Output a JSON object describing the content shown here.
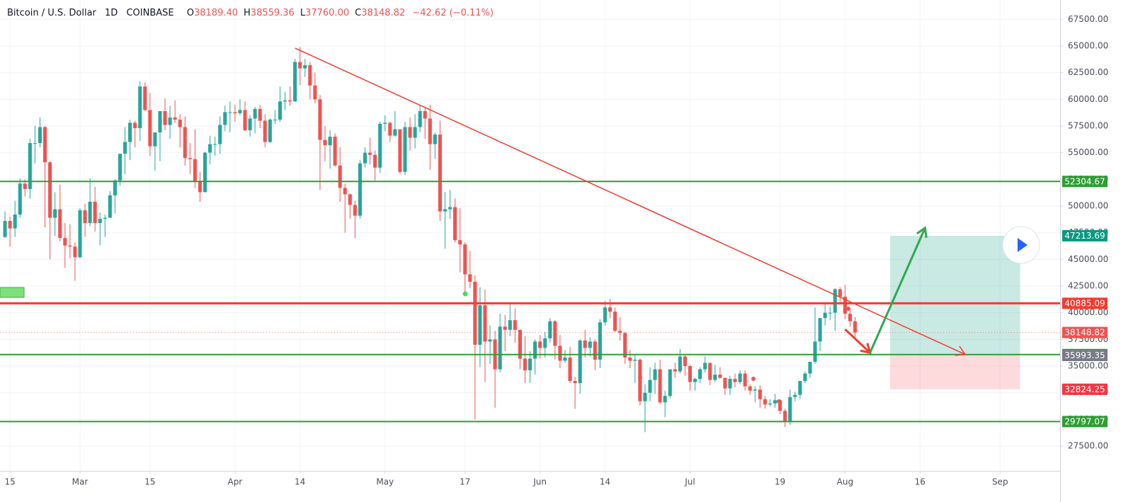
{
  "chart_data": {
    "type": "candlestick",
    "header": {
      "symbol": "Bitcoin / U.S. Dollar",
      "interval": "1D",
      "exchange": "COINBASE",
      "ohlc": [
        {
          "key": "O",
          "value": "38189.40"
        },
        {
          "key": "H",
          "value": "38559.36"
        },
        {
          "key": "L",
          "value": "37760.00"
        },
        {
          "key": "C",
          "value": "38148.82"
        }
      ],
      "change": "−42.62 (−0.11%)"
    },
    "x": [
      "2021-02-14",
      "2021-02-15",
      "2021-02-16",
      "2021-02-17",
      "2021-02-18",
      "2021-02-19",
      "2021-02-20",
      "2021-02-21",
      "2021-02-22",
      "2021-02-23",
      "2021-02-24",
      "2021-02-25",
      "2021-02-26",
      "2021-02-27",
      "2021-02-28",
      "2021-03-01",
      "2021-03-02",
      "2021-03-03",
      "2021-03-04",
      "2021-03-05",
      "2021-03-06",
      "2021-03-07",
      "2021-03-08",
      "2021-03-09",
      "2021-03-10",
      "2021-03-11",
      "2021-03-12",
      "2021-03-13",
      "2021-03-14",
      "2021-03-15",
      "2021-03-16",
      "2021-03-17",
      "2021-03-18",
      "2021-03-19",
      "2021-03-20",
      "2021-03-21",
      "2021-03-22",
      "2021-03-23",
      "2021-03-24",
      "2021-03-25",
      "2021-03-26",
      "2021-03-27",
      "2021-03-28",
      "2021-03-29",
      "2021-03-30",
      "2021-03-31",
      "2021-04-01",
      "2021-04-02",
      "2021-04-03",
      "2021-04-04",
      "2021-04-05",
      "2021-04-06",
      "2021-04-07",
      "2021-04-08",
      "2021-04-09",
      "2021-04-10",
      "2021-04-11",
      "2021-04-12",
      "2021-04-13",
      "2021-04-14",
      "2021-04-15",
      "2021-04-16",
      "2021-04-17",
      "2021-04-18",
      "2021-04-19",
      "2021-04-20",
      "2021-04-21",
      "2021-04-22",
      "2021-04-23",
      "2021-04-24",
      "2021-04-25",
      "2021-04-26",
      "2021-04-27",
      "2021-04-28",
      "2021-04-29",
      "2021-04-30",
      "2021-05-01",
      "2021-05-02",
      "2021-05-03",
      "2021-05-04",
      "2021-05-05",
      "2021-05-06",
      "2021-05-07",
      "2021-05-08",
      "2021-05-09",
      "2021-05-10",
      "2021-05-11",
      "2021-05-12",
      "2021-05-13",
      "2021-05-14",
      "2021-05-15",
      "2021-05-16",
      "2021-05-17",
      "2021-05-18",
      "2021-05-19",
      "2021-05-20",
      "2021-05-21",
      "2021-05-22",
      "2021-05-23",
      "2021-05-24",
      "2021-05-25",
      "2021-05-26",
      "2021-05-27",
      "2021-05-28",
      "2021-05-29",
      "2021-05-30",
      "2021-05-31",
      "2021-06-01",
      "2021-06-02",
      "2021-06-03",
      "2021-06-04",
      "2021-06-05",
      "2021-06-06",
      "2021-06-07",
      "2021-06-08",
      "2021-06-09",
      "2021-06-10",
      "2021-06-11",
      "2021-06-12",
      "2021-06-13",
      "2021-06-14",
      "2021-06-15",
      "2021-06-16",
      "2021-06-17",
      "2021-06-18",
      "2021-06-19",
      "2021-06-20",
      "2021-06-21",
      "2021-06-22",
      "2021-06-23",
      "2021-06-24",
      "2021-06-25",
      "2021-06-26",
      "2021-06-27",
      "2021-06-28",
      "2021-06-29",
      "2021-06-30",
      "2021-07-01",
      "2021-07-02",
      "2021-07-03",
      "2021-07-04",
      "2021-07-05",
      "2021-07-06",
      "2021-07-07",
      "2021-07-08",
      "2021-07-09",
      "2021-07-10",
      "2021-07-11",
      "2021-07-12",
      "2021-07-13",
      "2021-07-14",
      "2021-07-15",
      "2021-07-16",
      "2021-07-17",
      "2021-07-18",
      "2021-07-19",
      "2021-07-20",
      "2021-07-21",
      "2021-07-22",
      "2021-07-23",
      "2021-07-24",
      "2021-07-25",
      "2021-07-26",
      "2021-07-27",
      "2021-07-28",
      "2021-07-29",
      "2021-07-30",
      "2021-07-31",
      "2021-08-01",
      "2021-08-02",
      "2021-08-03"
    ],
    "open": [
      47100,
      48600,
      47900,
      49200,
      52100,
      51600,
      55900,
      55900,
      57400,
      54100,
      48900,
      49700,
      47000,
      46300,
      46200,
      45200,
      49600,
      48400,
      50400,
      48400,
      48800,
      48900,
      51000,
      52400,
      54900,
      56000,
      57800,
      57300,
      61200,
      59000,
      55600,
      56900,
      58900,
      57600,
      58300,
      58100,
      57400,
      54500,
      54400,
      52300,
      51300,
      55000,
      55800,
      55800,
      57600,
      58800,
      58800,
      58700,
      59000,
      57100,
      58200,
      59100,
      58000,
      56000,
      58100,
      58100,
      59800,
      59900,
      59800,
      63500,
      62900,
      63200,
      61300,
      60000,
      56200,
      55700,
      56500,
      53800,
      51700,
      51100,
      50100,
      49100,
      54000,
      55000,
      54800,
      53600,
      57700,
      57800,
      56600,
      57200,
      53200,
      57400,
      56400,
      57400,
      58900,
      58200,
      55800,
      56700,
      49500,
      49700,
      49900,
      46800,
      46400,
      43600,
      42900,
      37000,
      40700,
      37300,
      37500,
      34700,
      38700,
      38400,
      39300,
      38400,
      35700,
      34600,
      35700,
      37300,
      36700,
      37600,
      39200,
      36900,
      35500,
      35800,
      33600,
      33400,
      37400,
      36700,
      37300,
      35600,
      39100,
      40500,
      40100,
      38300,
      38100,
      35800,
      35500,
      35600,
      31700,
      32500,
      33700,
      34700,
      31600,
      32200,
      34700,
      34500,
      35900,
      35000,
      33500,
      33800,
      34700,
      35300,
      33700,
      34200,
      33900,
      32900,
      33800,
      33500,
      34300,
      33100,
      32700,
      32800,
      31900,
      31400,
      31500,
      31800,
      30800,
      29800,
      32100,
      32300,
      33600,
      34300,
      35400,
      37300,
      39500,
      40000,
      40000,
      42200,
      41500,
      39900,
      39200
    ],
    "high": [
      49500,
      49000,
      50500,
      52600,
      52500,
      56300,
      57500,
      58300,
      57500,
      54200,
      51300,
      52000,
      48400,
      48300,
      46600,
      49800,
      50200,
      52600,
      51800,
      49400,
      49200,
      51400,
      52500,
      54900,
      57400,
      58100,
      58000,
      61700,
      61600,
      60600,
      56900,
      58900,
      60100,
      59400,
      59900,
      58600,
      58400,
      55900,
      57200,
      53200,
      55100,
      56600,
      56500,
      58400,
      59400,
      59800,
      59500,
      60000,
      59800,
      58500,
      59300,
      59500,
      58600,
      58200,
      59000,
      61200,
      60700,
      61200,
      63800,
      64900,
      63800,
      63500,
      62500,
      60400,
      57500,
      57100,
      56800,
      55500,
      52100,
      51200,
      50500,
      54300,
      55500,
      56400,
      55200,
      57900,
      58500,
      57900,
      58900,
      57200,
      57900,
      58300,
      58600,
      59500,
      59200,
      59500,
      56900,
      58000,
      51300,
      51500,
      50700,
      49800,
      46600,
      45800,
      43500,
      42400,
      42200,
      38800,
      38300,
      39900,
      39800,
      40800,
      40400,
      38400,
      37800,
      36400,
      37500,
      37900,
      38200,
      39500,
      39300,
      37900,
      36500,
      36800,
      34000,
      37500,
      38400,
      37700,
      37500,
      39400,
      41100,
      41300,
      40500,
      39600,
      38200,
      36500,
      36100,
      35700,
      33300,
      34900,
      35300,
      35600,
      32700,
      34700,
      35300,
      36600,
      36000,
      35100,
      33900,
      34900,
      35900,
      35300,
      35100,
      34900,
      33900,
      34100,
      34300,
      34600,
      34600,
      33300,
      33100,
      33200,
      32200,
      31900,
      32400,
      31900,
      31000,
      32800,
      32600,
      33600,
      34500,
      35400,
      40500,
      39500,
      40900,
      40600,
      42300,
      42400,
      42600,
      40400,
      39600
    ],
    "low": [
      47000,
      46200,
      47100,
      48900,
      50900,
      50700,
      54000,
      55500,
      48000,
      45000,
      47200,
      46700,
      44200,
      45100,
      43000,
      45100,
      47100,
      48100,
      47600,
      46300,
      47100,
      48900,
      49300,
      51900,
      53000,
      54300,
      55500,
      56100,
      58900,
      54700,
      53300,
      54200,
      57100,
      56300,
      57800,
      55500,
      53800,
      53000,
      51700,
      50400,
      51300,
      53900,
      54700,
      54900,
      57000,
      56900,
      57900,
      58500,
      57000,
      56500,
      56800,
      57300,
      55500,
      55900,
      57700,
      57900,
      59000,
      59400,
      59800,
      61300,
      62100,
      60000,
      59600,
      51500,
      54200,
      53500,
      53700,
      50400,
      47500,
      48800,
      47000,
      48800,
      53600,
      53900,
      52400,
      53100,
      57000,
      56000,
      56500,
      53000,
      52900,
      55200,
      55400,
      56900,
      56300,
      53400,
      54400,
      48600,
      46000,
      48800,
      46600,
      43800,
      42000,
      42300,
      30000,
      34900,
      33500,
      35200,
      31100,
      34400,
      36400,
      37800,
      37200,
      34700,
      33400,
      33400,
      34200,
      35700,
      35800,
      37200,
      35600,
      34800,
      35300,
      33400,
      31000,
      32400,
      35800,
      35900,
      34600,
      34800,
      38800,
      39500,
      38200,
      37400,
      35200,
      34800,
      33400,
      31300,
      28800,
      31700,
      32400,
      31400,
      30200,
      32000,
      33900,
      34300,
      34100,
      32700,
      32700,
      33400,
      34400,
      33200,
      33500,
      33800,
      32300,
      32300,
      33000,
      33300,
      32700,
      32300,
      31600,
      31100,
      31000,
      31200,
      31100,
      30500,
      29300,
      29500,
      31700,
      31900,
      33400,
      33900,
      35200,
      36400,
      38800,
      39300,
      38300,
      41000,
      39400,
      38700,
      37600
    ],
    "close": [
      48600,
      47900,
      49200,
      52100,
      51600,
      55900,
      55900,
      57400,
      54100,
      48900,
      49700,
      47000,
      46300,
      46200,
      45200,
      49600,
      48400,
      50400,
      48400,
      48800,
      48900,
      51000,
      52400,
      54900,
      56000,
      57800,
      57300,
      61200,
      59000,
      55600,
      56900,
      58900,
      57600,
      58300,
      58100,
      57400,
      54500,
      54400,
      52300,
      51300,
      55000,
      55800,
      55800,
      57600,
      58800,
      58800,
      58700,
      59000,
      57100,
      58200,
      59100,
      58000,
      56000,
      58100,
      58100,
      59800,
      59900,
      59800,
      63500,
      62900,
      63200,
      61300,
      60000,
      56200,
      55700,
      56500,
      53800,
      51700,
      51100,
      50100,
      49100,
      54000,
      55000,
      54800,
      53600,
      57700,
      57800,
      56600,
      57200,
      53200,
      57400,
      56400,
      57400,
      58900,
      58200,
      55800,
      56700,
      49500,
      49700,
      49900,
      46800,
      46400,
      43600,
      42900,
      37000,
      40700,
      37300,
      37500,
      34700,
      38700,
      38400,
      39300,
      38400,
      35700,
      34600,
      35700,
      37300,
      36700,
      37600,
      39200,
      36900,
      35500,
      35800,
      33600,
      33400,
      37400,
      36700,
      37300,
      35600,
      39100,
      40500,
      40100,
      38300,
      38100,
      35800,
      35500,
      35600,
      31700,
      32500,
      33700,
      34700,
      31600,
      32200,
      34700,
      34500,
      35900,
      35000,
      33500,
      33800,
      34700,
      35300,
      33700,
      34200,
      33900,
      32900,
      33800,
      33500,
      34300,
      33100,
      32700,
      32800,
      31900,
      31400,
      31500,
      31800,
      30800,
      29800,
      32100,
      32300,
      33600,
      34300,
      35400,
      37300,
      39500,
      40000,
      40000,
      42200,
      41500,
      39900,
      39200,
      38150
    ],
    "up_color": "#26a69a",
    "down_color": "#ef5350",
    "xlim": [
      "2021-02-13",
      "2021-09-13"
    ],
    "xticks": [
      {
        "value": "2021-02-15",
        "label": "15"
      },
      {
        "value": "2021-03-01",
        "label": "Mar"
      },
      {
        "value": "2021-03-15",
        "label": "15"
      },
      {
        "value": "2021-04-01",
        "label": "Apr"
      },
      {
        "value": "2021-04-14",
        "label": "14"
      },
      {
        "value": "2021-05-01",
        "label": "May"
      },
      {
        "value": "2021-05-17",
        "label": "17"
      },
      {
        "value": "2021-06-01",
        "label": "Jun"
      },
      {
        "value": "2021-06-14",
        "label": "14"
      },
      {
        "value": "2021-07-01",
        "label": "Jul"
      },
      {
        "value": "2021-07-19",
        "label": "19"
      },
      {
        "value": "2021-08-01",
        "label": "Aug"
      },
      {
        "value": "2021-08-16",
        "label": "16"
      },
      {
        "value": "2021-09-01",
        "label": "Sep"
      }
    ],
    "ylim": [
      25180,
      69310
    ],
    "yticks": [
      {
        "value": 27500,
        "label": "27500.00"
      },
      {
        "value": 30000,
        "label": "30000.00"
      },
      {
        "value": 32500,
        "label": "32500.00"
      },
      {
        "value": 35000,
        "label": "35000.00"
      },
      {
        "value": 37500,
        "label": "37500.00"
      },
      {
        "value": 40000,
        "label": "40000.00"
      },
      {
        "value": 42500,
        "label": "42500.00"
      },
      {
        "value": 45000,
        "label": "45000.00"
      },
      {
        "value": 47500,
        "label": "47500.00"
      },
      {
        "value": 50000,
        "label": "50000.00"
      },
      {
        "value": 52500,
        "label": "52500.00"
      },
      {
        "value": 55000,
        "label": "55000.00"
      },
      {
        "value": 57500,
        "label": "57500.00"
      },
      {
        "value": 60000,
        "label": "60000.00"
      },
      {
        "value": 62500,
        "label": "62500.00"
      },
      {
        "value": 65000,
        "label": "65000.00"
      },
      {
        "value": 67500,
        "label": "67500.00"
      }
    ],
    "grid": true,
    "levels": [
      {
        "value": 52304.67,
        "color": "#2e9e35",
        "width": 2
      },
      {
        "value": 40885.09,
        "color": "#f23b30",
        "width": 3
      },
      {
        "value": 36082.63,
        "color": "#2e9e35",
        "width": 2
      },
      {
        "value": 29797.07,
        "color": "#2e9e35",
        "width": 2
      }
    ],
    "last_price": {
      "value": 38148.82,
      "color": "#ef5350"
    },
    "price_tags": [
      {
        "value": 35993.35,
        "color": "#787b86"
      }
    ],
    "position": {
      "start": "2021-08-10",
      "end": "2021-09-05",
      "target": 47213.69,
      "entry": 36082.63,
      "stop": 32824.25,
      "target_color": "#089981",
      "stop_color": "#f23645"
    },
    "trendline": {
      "color": "#f23b30",
      "points": [
        [
          "2021-04-13",
          64800
        ],
        [
          "2021-08-25",
          36100
        ]
      ]
    },
    "arrows": [
      {
        "color": "#f23b30",
        "points": [
          [
            "2021-08-01",
            38450
          ],
          [
            "2021-08-06",
            36250
          ]
        ]
      },
      {
        "color": "#2fa84f",
        "points": [
          [
            "2021-08-06",
            36250
          ],
          [
            "2021-08-17",
            47950
          ]
        ]
      }
    ]
  }
}
